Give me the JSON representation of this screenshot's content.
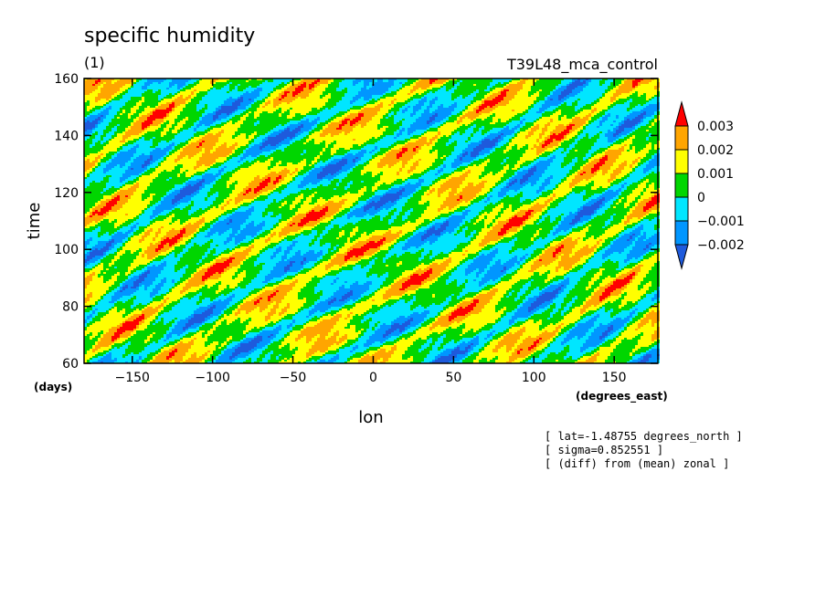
{
  "chart_data": {
    "type": "heatmap",
    "title": "specific humidity",
    "subtitle": "(1)",
    "experiment": "T39L48_mca_control",
    "xlabel": "lon",
    "ylabel": "time",
    "xunit": "(degrees_east)",
    "yunit": "(days)",
    "xlim": [
      -180,
      177.2
    ],
    "ylim": [
      60,
      160
    ],
    "xticks": [
      -150,
      -100,
      -50,
      0,
      50,
      100,
      150
    ],
    "yticks": [
      60,
      80,
      100,
      120,
      140,
      160
    ],
    "colorbar": {
      "levels": [
        "0.003",
        "0.002",
        "0.001",
        "0",
        "-0.001",
        "-0.002"
      ],
      "colors": [
        "#ff0000",
        "#ffa500",
        "#ffff00",
        "#00d600",
        "#00e6ff",
        "#0096ff",
        "#1e5adc"
      ]
    },
    "notes": [
      "[ lat=-1.48755 degrees_north ]",
      "[ sigma=0.852551 ]",
      "[ (diff) from (mean) zonal ]"
    ]
  }
}
